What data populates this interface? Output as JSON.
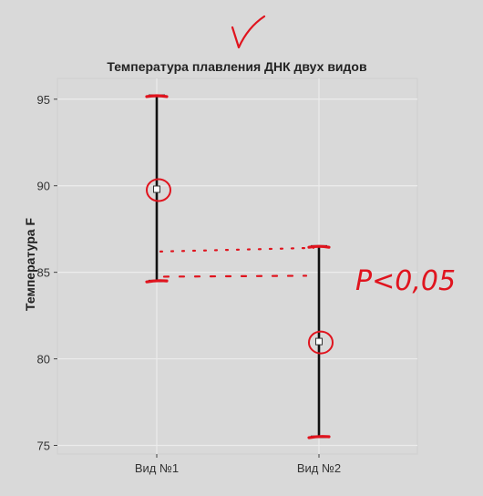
{
  "chart_data": {
    "type": "errorbar",
    "title": "Температура плавления ДНК двух видов",
    "ylabel": "Температура F",
    "xlabel": "",
    "ylim": [
      74.5,
      96.2
    ],
    "yticks": [
      75,
      80,
      85,
      90,
      95
    ],
    "grid": true,
    "categories": [
      "Вид №1",
      "Вид №2"
    ],
    "series": [
      {
        "points": [
          {
            "category": "Вид №1",
            "mean": 89.8,
            "lower": 84.5,
            "upper": 95.2
          },
          {
            "category": "Вид №2",
            "mean": 81.0,
            "lower": 75.5,
            "upper": 86.5
          }
        ]
      }
    ],
    "annotations": {
      "handwritten_text": "P<0,05",
      "checkmark": true,
      "color": "#e0141e"
    }
  },
  "colors": {
    "background": "#d9d9d9",
    "grid": "#ececec",
    "errorbar": "#111111",
    "annotation": "#e0141e"
  }
}
